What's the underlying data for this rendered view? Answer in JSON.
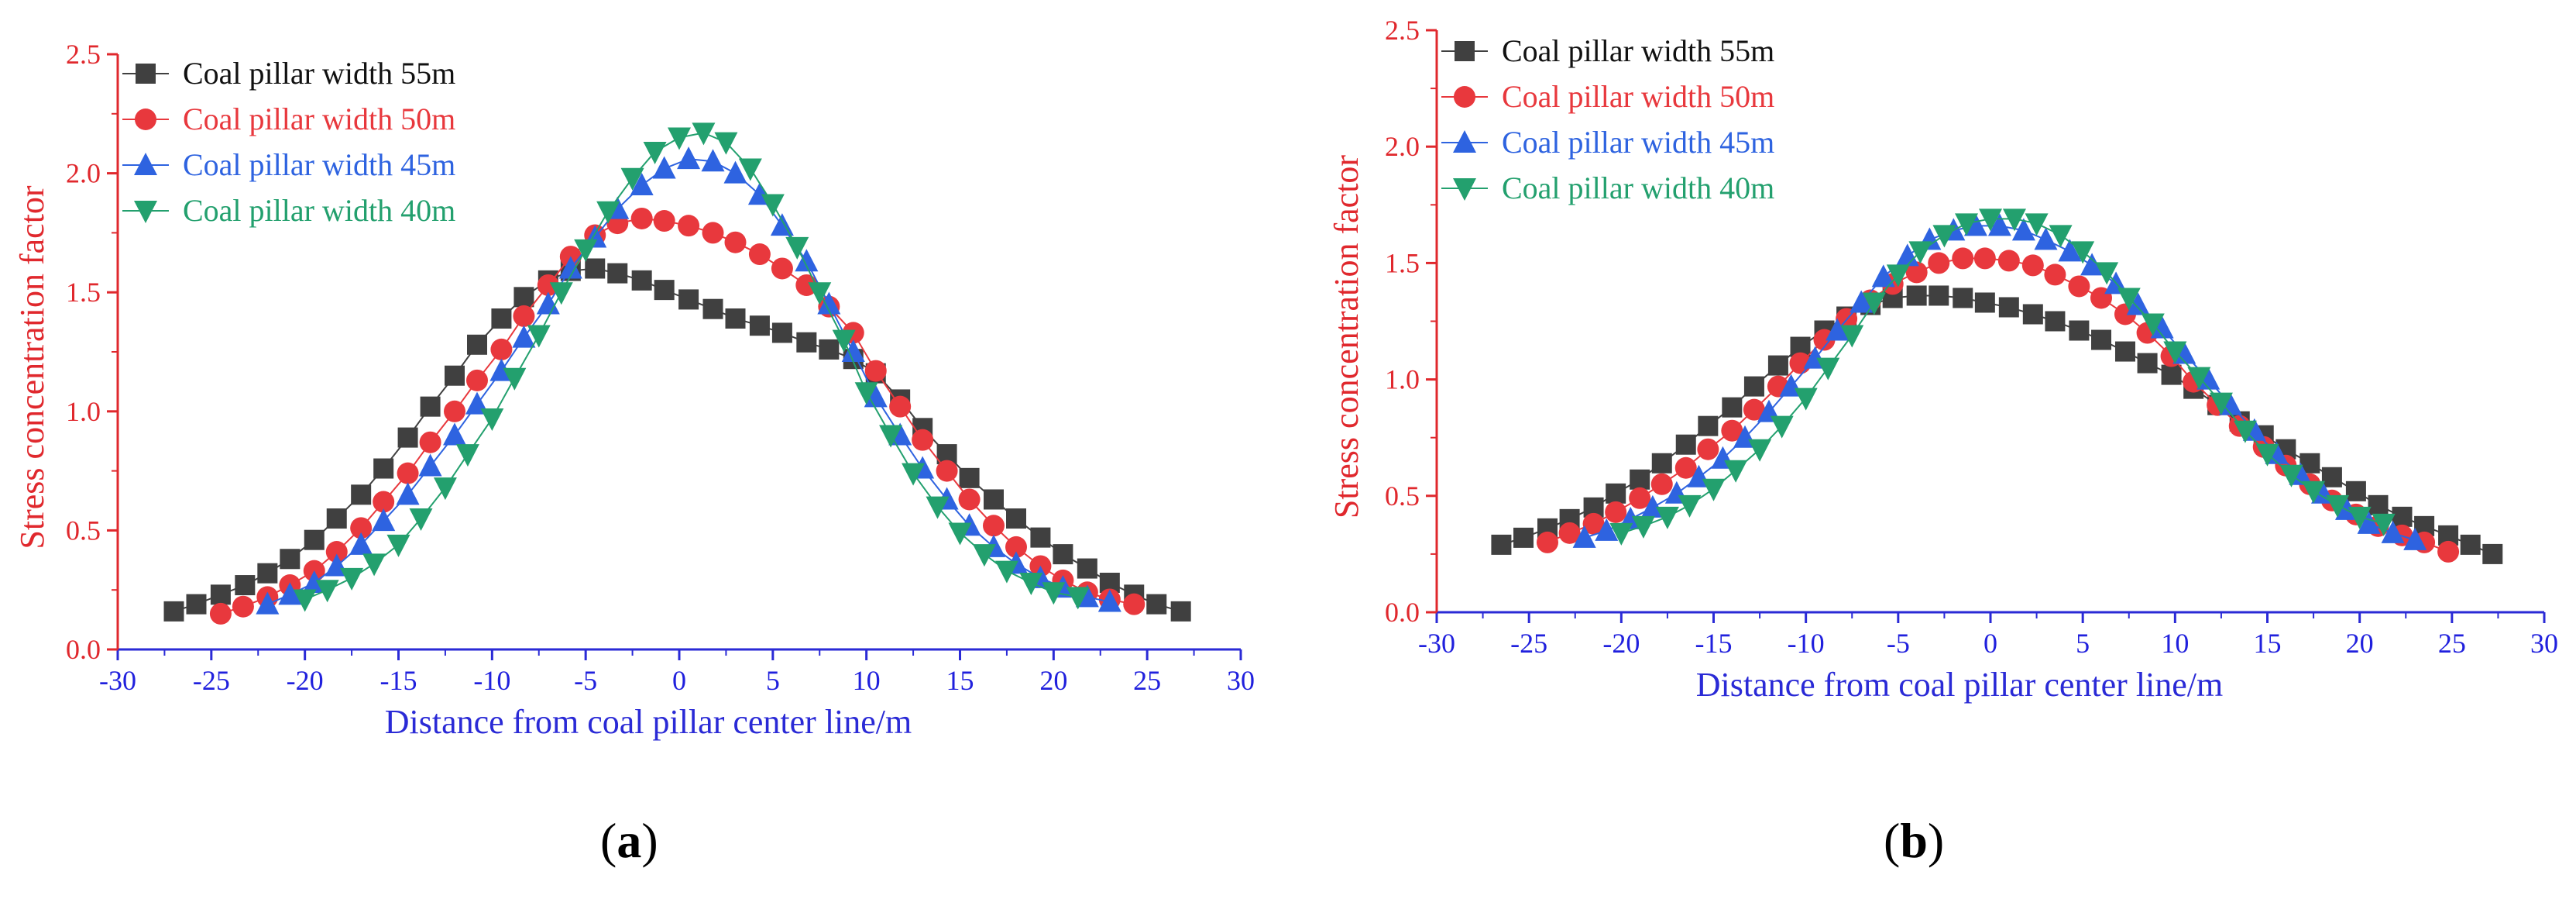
{
  "chart_data": [
    {
      "type": "scatter",
      "panel": "a",
      "caption": {
        "open": "(",
        "letter": "a",
        "close": ")"
      },
      "title": "",
      "xlabel": "Distance from coal pillar center line/m",
      "ylabel": "Stress concentration factor",
      "xlim": [
        -30,
        30
      ],
      "ylim": [
        0.0,
        2.5
      ],
      "xticks": [
        -30,
        -25,
        -20,
        -15,
        -10,
        -5,
        0,
        5,
        10,
        15,
        20,
        25,
        30
      ],
      "yticks": [
        "0.0",
        "0.5",
        "1.0",
        "1.5",
        "2.0",
        "2.5"
      ],
      "legend_position": "top-left",
      "series": [
        {
          "name": "Coal pillar width 55m",
          "color": "#404040",
          "marker": "square",
          "x": [
            -27,
            -25.8,
            -24.5,
            -23.2,
            -22,
            -20.8,
            -19.5,
            -18.3,
            -17,
            -15.8,
            -14.5,
            -13.3,
            -12,
            -10.8,
            -9.5,
            -8.3,
            -7,
            -5.8,
            -4.5,
            -3.3,
            -2,
            -0.8,
            0.5,
            1.8,
            3,
            4.3,
            5.5,
            6.8,
            8,
            9.3,
            10.5,
            11.8,
            13,
            14.3,
            15.5,
            16.8,
            18,
            19.3,
            20.5,
            21.8,
            23,
            24.3,
            25.5,
            26.8
          ],
          "y": [
            0.16,
            0.19,
            0.23,
            0.27,
            0.32,
            0.38,
            0.46,
            0.55,
            0.65,
            0.76,
            0.89,
            1.02,
            1.15,
            1.28,
            1.39,
            1.48,
            1.55,
            1.59,
            1.6,
            1.58,
            1.55,
            1.51,
            1.47,
            1.43,
            1.39,
            1.36,
            1.33,
            1.29,
            1.26,
            1.22,
            1.16,
            1.05,
            0.93,
            0.82,
            0.72,
            0.63,
            0.55,
            0.47,
            0.4,
            0.34,
            0.28,
            0.23,
            0.19,
            0.16
          ]
        },
        {
          "name": "Coal pillar width 50m",
          "color": "#e8383d",
          "marker": "circle",
          "x": [
            -24.5,
            -23.3,
            -22,
            -20.8,
            -19.5,
            -18.3,
            -17,
            -15.8,
            -14.5,
            -13.3,
            -12,
            -10.8,
            -9.5,
            -8.3,
            -7,
            -5.8,
            -4.5,
            -3.3,
            -2,
            -0.8,
            0.5,
            1.8,
            3,
            4.3,
            5.5,
            6.8,
            8,
            9.3,
            10.5,
            11.8,
            13,
            14.3,
            15.5,
            16.8,
            18,
            19.3,
            20.5,
            21.8,
            23,
            24.3
          ],
          "y": [
            0.15,
            0.18,
            0.22,
            0.27,
            0.33,
            0.41,
            0.51,
            0.62,
            0.74,
            0.87,
            1.0,
            1.13,
            1.26,
            1.4,
            1.53,
            1.65,
            1.74,
            1.79,
            1.81,
            1.8,
            1.78,
            1.75,
            1.71,
            1.66,
            1.6,
            1.53,
            1.44,
            1.33,
            1.17,
            1.02,
            0.88,
            0.75,
            0.63,
            0.52,
            0.43,
            0.35,
            0.29,
            0.24,
            0.21,
            0.19
          ]
        },
        {
          "name": "Coal pillar width 45m",
          "color": "#2e63e0",
          "marker": "triangle-up",
          "x": [
            -22,
            -20.8,
            -19.5,
            -18.3,
            -17,
            -15.8,
            -14.5,
            -13.3,
            -12,
            -10.8,
            -9.5,
            -8.3,
            -7,
            -5.8,
            -4.5,
            -3.3,
            -2,
            -0.8,
            0.5,
            1.8,
            3,
            4.3,
            5.5,
            6.8,
            8,
            9.3,
            10.5,
            11.8,
            13,
            14.3,
            15.5,
            16.8,
            18,
            19.3,
            20.5,
            21.8,
            23
          ],
          "y": [
            0.19,
            0.23,
            0.28,
            0.35,
            0.44,
            0.54,
            0.65,
            0.77,
            0.9,
            1.03,
            1.17,
            1.31,
            1.45,
            1.6,
            1.73,
            1.85,
            1.95,
            2.02,
            2.06,
            2.05,
            2.0,
            1.91,
            1.78,
            1.63,
            1.45,
            1.25,
            1.06,
            0.9,
            0.76,
            0.63,
            0.52,
            0.43,
            0.36,
            0.3,
            0.26,
            0.22,
            0.2
          ]
        },
        {
          "name": "Coal pillar width 40m",
          "color": "#23a06e",
          "marker": "triangle-down",
          "x": [
            -20,
            -18.8,
            -17.5,
            -16.3,
            -15,
            -13.8,
            -12.5,
            -11.3,
            -10,
            -8.8,
            -7.5,
            -6.3,
            -5,
            -3.8,
            -2.5,
            -1.3,
            0,
            1.3,
            2.5,
            3.8,
            5,
            6.3,
            7.5,
            8.8,
            10,
            11.3,
            12.5,
            13.8,
            15,
            16.3,
            17.5,
            18.8,
            20,
            21.3
          ],
          "y": [
            0.21,
            0.25,
            0.3,
            0.36,
            0.44,
            0.55,
            0.68,
            0.82,
            0.97,
            1.14,
            1.32,
            1.5,
            1.68,
            1.84,
            1.98,
            2.09,
            2.15,
            2.17,
            2.13,
            2.02,
            1.87,
            1.69,
            1.5,
            1.3,
            1.08,
            0.9,
            0.74,
            0.6,
            0.49,
            0.4,
            0.33,
            0.28,
            0.24,
            0.22
          ]
        }
      ]
    },
    {
      "type": "scatter",
      "panel": "b",
      "caption": {
        "open": "(",
        "letter": "b",
        "close": ")"
      },
      "title": "",
      "xlabel": "Distance from coal pillar center line/m",
      "ylabel": "Stress concentration factor",
      "xlim": [
        -30,
        30
      ],
      "ylim": [
        0.0,
        2.5
      ],
      "xticks": [
        -30,
        -25,
        -20,
        -15,
        -10,
        -5,
        0,
        5,
        10,
        15,
        20,
        25,
        30
      ],
      "yticks": [
        "0.0",
        "0.5",
        "1.0",
        "1.5",
        "2.0",
        "2.5"
      ],
      "legend_position": "top-left",
      "series": [
        {
          "name": "Coal pillar width 55m",
          "color": "#404040",
          "marker": "square",
          "x": [
            -26.5,
            -25.3,
            -24,
            -22.8,
            -21.5,
            -20.3,
            -19,
            -17.8,
            -16.5,
            -15.3,
            -14,
            -12.8,
            -11.5,
            -10.3,
            -9,
            -7.8,
            -6.5,
            -5.3,
            -4,
            -2.8,
            -1.5,
            -0.3,
            1,
            2.3,
            3.5,
            4.8,
            6,
            7.3,
            8.5,
            9.8,
            11,
            12.3,
            13.5,
            14.8,
            16,
            17.3,
            18.5,
            19.8,
            21,
            22.3,
            23.5,
            24.8,
            26,
            27.2
          ],
          "y": [
            0.29,
            0.32,
            0.36,
            0.4,
            0.45,
            0.51,
            0.57,
            0.64,
            0.72,
            0.8,
            0.88,
            0.97,
            1.06,
            1.14,
            1.21,
            1.27,
            1.32,
            1.35,
            1.36,
            1.36,
            1.35,
            1.33,
            1.31,
            1.28,
            1.25,
            1.21,
            1.17,
            1.12,
            1.07,
            1.02,
            0.96,
            0.89,
            0.82,
            0.76,
            0.7,
            0.64,
            0.58,
            0.52,
            0.46,
            0.41,
            0.37,
            0.33,
            0.29,
            0.25
          ]
        },
        {
          "name": "Coal pillar width 50m",
          "color": "#e8383d",
          "marker": "circle",
          "x": [
            -24,
            -22.8,
            -21.5,
            -20.3,
            -19,
            -17.8,
            -16.5,
            -15.3,
            -14,
            -12.8,
            -11.5,
            -10.3,
            -9,
            -7.8,
            -6.5,
            -5.3,
            -4,
            -2.8,
            -1.5,
            -0.3,
            1,
            2.3,
            3.5,
            4.8,
            6,
            7.3,
            8.5,
            9.8,
            11,
            12.3,
            13.5,
            14.8,
            16,
            17.3,
            18.5,
            19.8,
            21,
            22.3,
            23.5,
            24.8
          ],
          "y": [
            0.3,
            0.34,
            0.38,
            0.43,
            0.49,
            0.55,
            0.62,
            0.7,
            0.78,
            0.87,
            0.97,
            1.07,
            1.17,
            1.26,
            1.34,
            1.41,
            1.46,
            1.5,
            1.52,
            1.52,
            1.51,
            1.49,
            1.45,
            1.4,
            1.35,
            1.28,
            1.2,
            1.1,
            0.99,
            0.89,
            0.8,
            0.71,
            0.63,
            0.55,
            0.48,
            0.42,
            0.37,
            0.33,
            0.3,
            0.26
          ]
        },
        {
          "name": "Coal pillar width 45m",
          "color": "#2e63e0",
          "marker": "triangle-up",
          "x": [
            -22,
            -20.8,
            -19.5,
            -18.3,
            -17,
            -15.8,
            -14.5,
            -13.3,
            -12,
            -10.8,
            -9.5,
            -8.3,
            -7,
            -5.8,
            -4.5,
            -3.3,
            -2,
            -0.8,
            0.5,
            1.8,
            3,
            4.3,
            5.5,
            6.8,
            8,
            9.3,
            10.5,
            11.8,
            13,
            14.3,
            15.5,
            16.8,
            18,
            19.3,
            20.5,
            21.8,
            23
          ],
          "y": [
            0.32,
            0.35,
            0.4,
            0.45,
            0.51,
            0.58,
            0.66,
            0.75,
            0.86,
            0.97,
            1.09,
            1.21,
            1.33,
            1.44,
            1.53,
            1.6,
            1.64,
            1.66,
            1.66,
            1.64,
            1.6,
            1.55,
            1.49,
            1.41,
            1.32,
            1.22,
            1.11,
            1.0,
            0.89,
            0.78,
            0.68,
            0.59,
            0.51,
            0.44,
            0.38,
            0.34,
            0.31
          ]
        },
        {
          "name": "Coal pillar width 40m",
          "color": "#23a06e",
          "marker": "triangle-down",
          "x": [
            -20,
            -18.8,
            -17.5,
            -16.3,
            -15,
            -13.8,
            -12.5,
            -11.3,
            -10,
            -8.8,
            -7.5,
            -6.3,
            -5,
            -3.8,
            -2.5,
            -1.3,
            0,
            1.3,
            2.5,
            3.8,
            5,
            6.3,
            7.5,
            8.8,
            10,
            11.3,
            12.5,
            13.8,
            15,
            16.3,
            17.5,
            18.8,
            20,
            21.3
          ],
          "y": [
            0.34,
            0.37,
            0.41,
            0.46,
            0.53,
            0.61,
            0.7,
            0.8,
            0.92,
            1.05,
            1.19,
            1.33,
            1.45,
            1.55,
            1.62,
            1.67,
            1.69,
            1.69,
            1.67,
            1.62,
            1.55,
            1.46,
            1.35,
            1.24,
            1.12,
            1.01,
            0.9,
            0.78,
            0.68,
            0.59,
            0.52,
            0.46,
            0.41,
            0.38
          ]
        }
      ]
    }
  ]
}
